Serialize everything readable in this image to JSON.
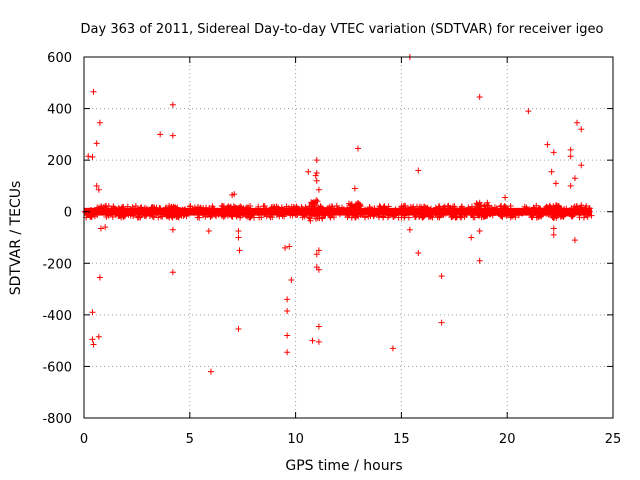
{
  "chart_data": {
    "type": "scatter",
    "title": "Day 363 of 2011, Sidereal Day-to-day VTEC variation (SDTVAR) for receiver igeo",
    "xlabel": "GPS time / hours",
    "ylabel": "SDTVAR / TECUs",
    "xlim": [
      0,
      25
    ],
    "ylim": [
      -800,
      600
    ],
    "xticks": [
      0,
      5,
      10,
      15,
      20,
      25
    ],
    "yticks": [
      -800,
      -600,
      -400,
      -200,
      0,
      200,
      400,
      600
    ],
    "grid": true,
    "marker": "+",
    "color": "#ff0000",
    "dense_band": {
      "x_range": [
        0,
        24
      ],
      "y_range": [
        -15,
        15
      ],
      "bulges": [
        {
          "x": 4.2,
          "y_range": [
            -22,
            22
          ]
        },
        {
          "x": 7.0,
          "y_range": [
            -20,
            20
          ]
        },
        {
          "x": 11.0,
          "y_range": [
            -30,
            45
          ]
        },
        {
          "x": 12.8,
          "y_range": [
            -15,
            35
          ]
        },
        {
          "x": 18.8,
          "y_range": [
            -20,
            35
          ]
        },
        {
          "x": 22.3,
          "y_range": [
            -25,
            25
          ]
        }
      ]
    },
    "outliers": [
      [
        0.2,
        215
      ],
      [
        0.4,
        212
      ],
      [
        0.45,
        465
      ],
      [
        0.6,
        265
      ],
      [
        0.6,
        100
      ],
      [
        0.7,
        85
      ],
      [
        0.75,
        345
      ],
      [
        0.75,
        -255
      ],
      [
        0.4,
        -390
      ],
      [
        0.4,
        -495
      ],
      [
        0.45,
        -515
      ],
      [
        0.7,
        -485
      ],
      [
        0.8,
        -65
      ],
      [
        1.0,
        -60
      ],
      [
        1.0,
        20
      ],
      [
        0.15,
        -10
      ],
      [
        3.6,
        300
      ],
      [
        4.2,
        415
      ],
      [
        4.2,
        295
      ],
      [
        4.2,
        -70
      ],
      [
        4.2,
        -235
      ],
      [
        5.9,
        -75
      ],
      [
        6.0,
        -620
      ],
      [
        7.0,
        65
      ],
      [
        7.1,
        68
      ],
      [
        7.3,
        -75
      ],
      [
        7.3,
        -100
      ],
      [
        7.35,
        -150
      ],
      [
        7.3,
        -455
      ],
      [
        9.5,
        -140
      ],
      [
        9.7,
        -135
      ],
      [
        9.6,
        -340
      ],
      [
        9.6,
        -385
      ],
      [
        9.6,
        -480
      ],
      [
        9.6,
        -545
      ],
      [
        9.8,
        -265
      ],
      [
        10.6,
        155
      ],
      [
        10.7,
        -35
      ],
      [
        10.8,
        -500
      ],
      [
        11.0,
        200
      ],
      [
        11.0,
        150
      ],
      [
        11.1,
        85
      ],
      [
        11.0,
        -165
      ],
      [
        11.0,
        -215
      ],
      [
        11.1,
        -225
      ],
      [
        11.1,
        -150
      ],
      [
        11.1,
        -445
      ],
      [
        11.1,
        -505
      ],
      [
        11.0,
        120
      ],
      [
        10.95,
        140
      ],
      [
        12.8,
        90
      ],
      [
        12.95,
        245
      ],
      [
        14.6,
        -530
      ],
      [
        15.4,
        600
      ],
      [
        15.4,
        -70
      ],
      [
        15.8,
        160
      ],
      [
        15.8,
        -160
      ],
      [
        16.9,
        -250
      ],
      [
        16.9,
        -430
      ],
      [
        18.3,
        -100
      ],
      [
        18.7,
        445
      ],
      [
        18.7,
        -75
      ],
      [
        18.7,
        -190
      ],
      [
        18.7,
        35
      ],
      [
        19.9,
        55
      ],
      [
        21.0,
        390
      ],
      [
        21.9,
        260
      ],
      [
        22.1,
        155
      ],
      [
        22.3,
        110
      ],
      [
        22.2,
        230
      ],
      [
        22.2,
        -65
      ],
      [
        22.2,
        -90
      ],
      [
        23.0,
        240
      ],
      [
        23.0,
        215
      ],
      [
        23.0,
        100
      ],
      [
        23.2,
        130
      ],
      [
        23.2,
        -110
      ],
      [
        23.3,
        345
      ],
      [
        23.5,
        320
      ],
      [
        23.5,
        180
      ],
      [
        23.5,
        25
      ],
      [
        23.8,
        -20
      ],
      [
        23.7,
        15
      ]
    ]
  }
}
